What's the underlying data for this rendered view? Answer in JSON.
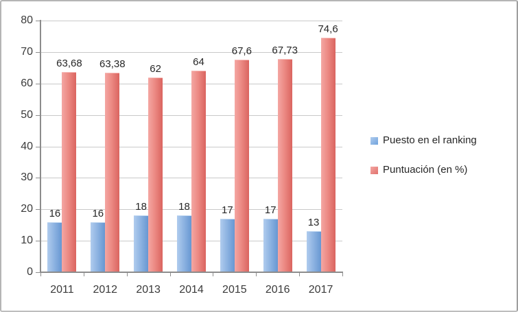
{
  "chart_data": {
    "type": "bar",
    "title": "",
    "categories": [
      "2011",
      "2012",
      "2013",
      "2014",
      "2015",
      "2016",
      "2017"
    ],
    "series": [
      {
        "name": "Puesto en el ranking",
        "values": [
          16,
          16,
          18,
          18,
          17,
          17,
          13
        ],
        "labels": [
          "16",
          "16",
          "18",
          "18",
          "17",
          "17",
          "13"
        ],
        "color": "#6fa3dc",
        "gradient": [
          "#b0ccee",
          "#6797d2"
        ]
      },
      {
        "name": "Puntuación (en %)",
        "values": [
          63.68,
          63.38,
          62,
          64,
          67.6,
          67.73,
          74.6
        ],
        "labels": [
          "63,68",
          "63,38",
          "62",
          "64",
          "67,6",
          "67,73",
          "74,6"
        ],
        "color": "#e0716c",
        "gradient": [
          "#f4a7a3",
          "#da645f"
        ]
      }
    ],
    "y_axis": {
      "min": 0,
      "max": 80,
      "step": 10,
      "tick_labels": [
        "0",
        "10",
        "20",
        "30",
        "40",
        "50",
        "60",
        "70",
        "80"
      ]
    },
    "x_axis": {
      "label": ""
    },
    "legend": {
      "position": "right",
      "entries": [
        "Puesto en el ranking",
        "Puntuación (en %)"
      ]
    },
    "grid": true
  }
}
